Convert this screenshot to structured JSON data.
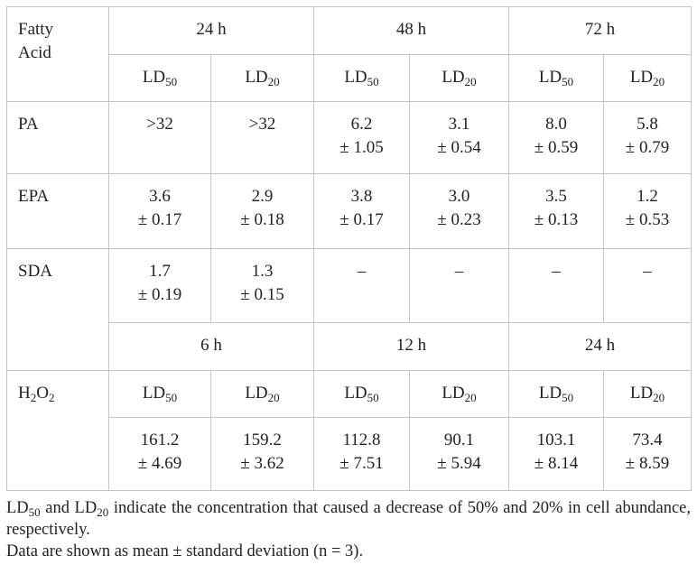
{
  "table": {
    "corner": "Fatty Acid",
    "times": [
      "24 h",
      "48 h",
      "72 h"
    ],
    "measures": [
      [
        {
          "text": "LD"
        },
        {
          "sub": "50"
        }
      ],
      [
        {
          "text": "LD"
        },
        {
          "sub": "20"
        }
      ],
      [
        {
          "text": "LD"
        },
        {
          "sub": "50"
        }
      ],
      [
        {
          "text": "LD"
        },
        {
          "sub": "20"
        }
      ],
      [
        {
          "text": "LD"
        },
        {
          "sub": "50"
        }
      ],
      [
        {
          "text": "LD"
        },
        {
          "sub": "20"
        }
      ]
    ],
    "rows": [
      {
        "name": "PA",
        "values": [
          [
            ">32"
          ],
          [
            ">32"
          ],
          [
            "6.2",
            "± 1.05"
          ],
          [
            "3.1",
            "± 0.54"
          ],
          [
            "8.0",
            "± 0.59"
          ],
          [
            "5.8",
            "± 0.79"
          ]
        ]
      },
      {
        "name": "EPA",
        "values": [
          [
            "3.6",
            "± 0.17"
          ],
          [
            "2.9",
            "± 0.18"
          ],
          [
            "3.8",
            "± 0.17"
          ],
          [
            "3.0",
            "± 0.23"
          ],
          [
            "3.5",
            "± 0.13"
          ],
          [
            "1.2",
            "± 0.53"
          ]
        ]
      },
      {
        "name": "SDA",
        "values": [
          [
            "1.7",
            "± 0.19"
          ],
          [
            "1.3",
            "± 0.15"
          ],
          [
            "–"
          ],
          [
            "–"
          ],
          [
            "–"
          ],
          [
            "–"
          ]
        ]
      }
    ],
    "h2o2": {
      "name": [
        {
          "text": "H"
        },
        {
          "sub": "2"
        },
        {
          "text": "O"
        },
        {
          "sub": "2"
        }
      ],
      "times": [
        "6 h",
        "12 h",
        "24 h"
      ],
      "measures": [
        [
          {
            "text": "LD"
          },
          {
            "sub": "50"
          }
        ],
        [
          {
            "text": "LD"
          },
          {
            "sub": "20"
          }
        ],
        [
          {
            "text": "LD"
          },
          {
            "sub": "50"
          }
        ],
        [
          {
            "text": "LD"
          },
          {
            "sub": "20"
          }
        ],
        [
          {
            "text": "LD"
          },
          {
            "sub": "50"
          }
        ],
        [
          {
            "text": "LD"
          },
          {
            "sub": "20"
          }
        ]
      ],
      "values": [
        [
          "161.2",
          "± 4.69"
        ],
        [
          "159.2",
          "± 3.62"
        ],
        [
          "112.8",
          "± 7.51"
        ],
        [
          "90.1",
          "± 5.94"
        ],
        [
          "103.1",
          "± 8.14"
        ],
        [
          "73.4",
          "± 8.59"
        ]
      ]
    }
  },
  "footnotes": [
    [
      {
        "text": "LD"
      },
      {
        "sub": "50"
      },
      {
        "text": " and LD"
      },
      {
        "sub": "20"
      },
      {
        "text": " indicate the concentration that caused a decrease of 50% and 20% in cell abundance, respectively."
      }
    ],
    "Data are shown as mean ± standard deviation (n = 3)."
  ]
}
